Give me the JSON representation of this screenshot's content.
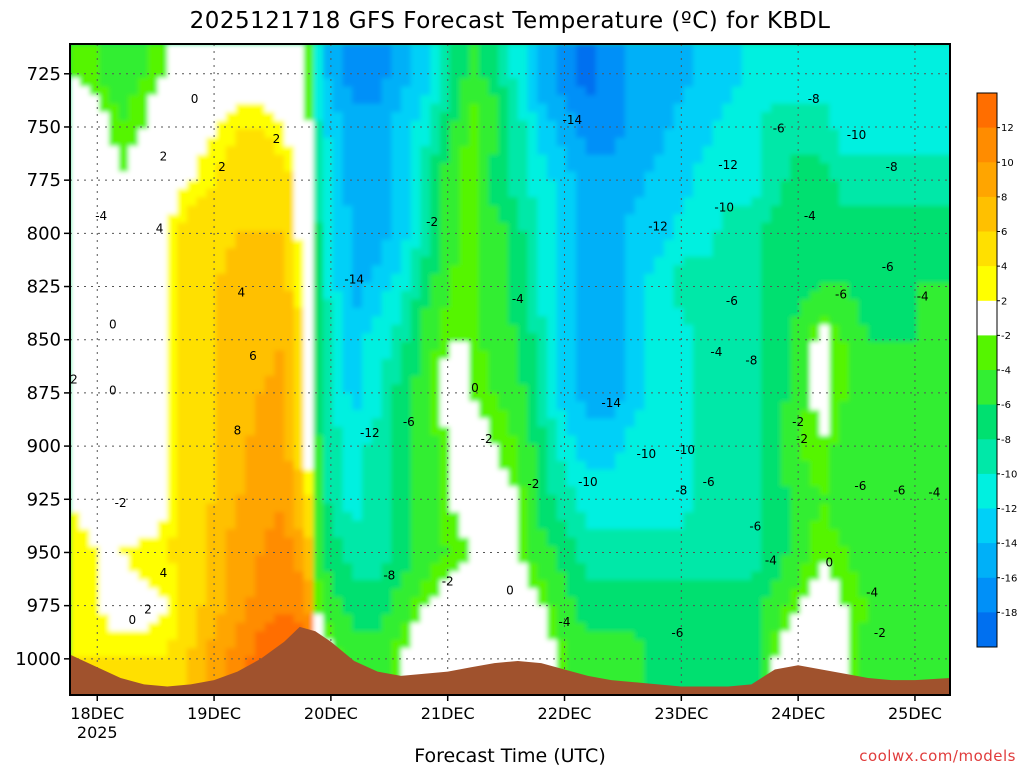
{
  "chart_data": {
    "type": "heatmap",
    "title": "2025121718 GFS Forecast Temperature (ºC) for KBDL",
    "xlabel": "Forecast Time (UTC)",
    "ylabel": "",
    "credit": "coolwx.com/models",
    "y_axis": {
      "ticks": [
        725,
        750,
        775,
        800,
        825,
        850,
        875,
        900,
        925,
        950,
        975,
        1000
      ],
      "range": [
        711,
        1017
      ],
      "inverted": true
    },
    "x_axis": {
      "ticks": [
        {
          "label": "18DEC",
          "sublabel": "2025",
          "hour": 6
        },
        {
          "label": "19DEC",
          "hour": 36
        },
        {
          "label": "20DEC",
          "hour": 66
        },
        {
          "label": "21DEC",
          "hour": 96
        },
        {
          "label": "22DEC",
          "hour": 126
        },
        {
          "label": "23DEC",
          "hour": 156
        },
        {
          "label": "24DEC",
          "hour": 186
        },
        {
          "label": "25DEC",
          "hour": 216
        }
      ],
      "range_hours": [
        -1,
        225
      ]
    },
    "colorbar": {
      "labels": [
        "12",
        "10",
        "8",
        "6",
        "4",
        "2",
        "-2",
        "-4",
        "-6",
        "-8",
        "-10",
        "-12",
        "-14",
        "-16",
        "-18"
      ],
      "colors": [
        "#ff6e00",
        "#ff8c00",
        "#ffa500",
        "#ffc000",
        "#ffe000",
        "#ffff00",
        "#ffffff",
        "#55f500",
        "#33ee33",
        "#00e070",
        "#00e8a8",
        "#00f0e0",
        "#00d0f8",
        "#00b0f8",
        "#0090f8",
        "#0070f0"
      ]
    },
    "bands": [
      {
        "label": "-18",
        "color": "#0070f0"
      },
      {
        "label": "-16",
        "color": "#0090f8"
      },
      {
        "label": "-14",
        "color": "#00b0f8"
      },
      {
        "label": "-12",
        "color": "#00d0f8"
      },
      {
        "label": "-10",
        "color": "#00f0e0"
      },
      {
        "label": "-8",
        "color": "#00e8a8"
      },
      {
        "label": "-6",
        "color": "#00e070"
      },
      {
        "label": "-4",
        "color": "#33ee33"
      },
      {
        "label": "-2",
        "color": "#55f500"
      },
      {
        "label": "0",
        "color": "#ffffff"
      },
      {
        "label": "2",
        "color": "#ffff00"
      },
      {
        "label": "4",
        "color": "#ffe000"
      },
      {
        "label": "6",
        "color": "#ffc000"
      },
      {
        "label": "8",
        "color": "#ffa500"
      },
      {
        "label": "10",
        "color": "#ff8c00"
      },
      {
        "label": "12",
        "color": "#ff6e00"
      }
    ],
    "terrain_color": "#a0522d",
    "temperature_grid": {
      "levels_hpa": [
        1015,
        1000,
        975,
        950,
        925,
        900,
        875,
        850,
        825,
        800,
        775,
        750,
        725,
        711
      ],
      "hours": [
        -1,
        6,
        12,
        18,
        24,
        30,
        36,
        42,
        48,
        54,
        60,
        62,
        64,
        66,
        72,
        78,
        84,
        90,
        96,
        102,
        108,
        114,
        120,
        126,
        132,
        138,
        144,
        150,
        156,
        162,
        168,
        174,
        180,
        186,
        192,
        198,
        204,
        210,
        216,
        225
      ],
      "values": [
        [
          3,
          3,
          3,
          3,
          3,
          5,
          8,
          10,
          12,
          12,
          12,
          2,
          0,
          -2,
          -4,
          -4,
          -2,
          0,
          0,
          0,
          0,
          2,
          0,
          -3,
          -4,
          -4,
          -4,
          -6,
          -6,
          -6,
          -6,
          -6,
          -2,
          0,
          0,
          -2,
          -4,
          -4,
          -4,
          -4
        ],
        [
          3,
          3,
          3,
          3,
          3,
          5,
          8,
          10,
          12,
          12,
          12,
          2,
          0,
          -2,
          -4,
          -4,
          -2,
          0,
          0,
          0,
          0,
          2,
          0,
          -3,
          -4,
          -4,
          -4,
          -6,
          -6,
          -6,
          -6,
          -6,
          -2,
          0,
          0,
          -2,
          -4,
          -4,
          -4,
          -4
        ],
        [
          2,
          2,
          1,
          1,
          2,
          4,
          6,
          8,
          10,
          11,
          10,
          -2,
          -3,
          -4,
          -6,
          -6,
          -4,
          -2,
          -1,
          0,
          0,
          0,
          -2,
          -4,
          -6,
          -6,
          -6,
          -6,
          -6,
          -6,
          -6,
          -6,
          -4,
          -2,
          -1,
          -2,
          -3,
          -4,
          -4,
          -4
        ],
        [
          3,
          2,
          2,
          3,
          3,
          4,
          6,
          8,
          9,
          10,
          7,
          -3,
          -5,
          -6,
          -8,
          -8,
          -6,
          -4,
          -3,
          -2,
          -1,
          -2,
          -4,
          -6,
          -8,
          -8,
          -8,
          -8,
          -8,
          -8,
          -8,
          -8,
          -6,
          -4,
          -2,
          -3,
          -4,
          -4,
          -4,
          -4
        ],
        [
          2,
          1,
          -1,
          -1,
          2,
          4,
          5,
          7,
          8,
          9,
          4,
          -4,
          -6,
          -8,
          -10,
          -8,
          -6,
          -4,
          -2,
          -1,
          -1,
          -2,
          -6,
          -8,
          -10,
          -10,
          -10,
          -10,
          -10,
          -8,
          -8,
          -8,
          -6,
          -4,
          -3,
          -4,
          -4,
          -4,
          -4,
          -4
        ],
        [
          1,
          0,
          -1,
          0,
          2,
          4,
          5,
          6,
          8,
          8,
          2,
          -4,
          -6,
          -8,
          -10,
          -8,
          -6,
          -4,
          -2,
          -1,
          -2,
          -3,
          -6,
          -10,
          -12,
          -12,
          -10,
          -10,
          -10,
          -8,
          -8,
          -8,
          -6,
          -3,
          -2,
          -4,
          -5,
          -4,
          -4,
          -4
        ],
        [
          1,
          0,
          0,
          1,
          2,
          4,
          5,
          6,
          7,
          8,
          1,
          -5,
          -7,
          -9,
          -12,
          -10,
          -6,
          -4,
          -1,
          -2,
          -3,
          -4,
          -8,
          -12,
          -14,
          -14,
          -12,
          -10,
          -10,
          -8,
          -8,
          -8,
          -6,
          -4,
          -1,
          -3,
          -5,
          -5,
          -5,
          -5
        ],
        [
          1,
          0,
          0,
          1,
          2,
          4,
          5,
          6,
          6,
          7,
          1,
          -5,
          -7,
          -9,
          -12,
          -10,
          -8,
          -4,
          -2,
          -2,
          -4,
          -5,
          -8,
          -12,
          -14,
          -14,
          -12,
          -10,
          -10,
          -8,
          -8,
          -8,
          -6,
          -4,
          -1,
          -3,
          -5,
          -5,
          -5,
          -5
        ],
        [
          2,
          0,
          -1,
          1,
          2,
          4,
          5,
          6,
          6,
          6,
          1,
          -6,
          -8,
          -10,
          -14,
          -12,
          -10,
          -6,
          -3,
          -2,
          -4,
          -6,
          -10,
          -12,
          -14,
          -14,
          -12,
          -10,
          -8,
          -8,
          -8,
          -8,
          -6,
          -6,
          -5,
          -5,
          -6,
          -6,
          -5,
          -5
        ],
        [
          2,
          0,
          -1,
          1,
          2,
          4,
          4,
          5,
          5,
          5,
          0,
          -6,
          -8,
          -10,
          -14,
          -14,
          -12,
          -8,
          -4,
          -2,
          -4,
          -6,
          -10,
          -12,
          -14,
          -14,
          -12,
          -12,
          -10,
          -10,
          -8,
          -8,
          -6,
          -6,
          -6,
          -6,
          -6,
          -6,
          -6,
          -6
        ],
        [
          2,
          0,
          -2,
          0,
          1,
          2,
          3,
          4,
          4,
          4,
          0,
          -7,
          -9,
          -11,
          -14,
          -14,
          -12,
          -8,
          -4,
          -2,
          -6,
          -8,
          -10,
          -12,
          -14,
          -14,
          -14,
          -12,
          -12,
          -10,
          -10,
          -10,
          -8,
          -6,
          -6,
          -8,
          -8,
          -8,
          -8,
          -8
        ],
        [
          0,
          -1,
          -3,
          -2,
          0,
          1,
          2,
          3,
          3,
          2,
          -1,
          -8,
          -10,
          -12,
          -14,
          -14,
          -12,
          -10,
          -6,
          -2,
          -4,
          -8,
          -12,
          -14,
          -16,
          -16,
          -14,
          -14,
          -12,
          -12,
          -10,
          -10,
          -8,
          -8,
          -8,
          -10,
          -10,
          -10,
          -10,
          -10
        ],
        [
          -2,
          -3,
          -4,
          -3,
          -2,
          -1,
          0,
          1,
          1,
          0,
          -2,
          -10,
          -12,
          -14,
          -16,
          -16,
          -14,
          -12,
          -8,
          -4,
          -6,
          -10,
          -14,
          -16,
          -18,
          -16,
          -14,
          -14,
          -14,
          -12,
          -12,
          -10,
          -10,
          -10,
          -10,
          -10,
          -10,
          -10,
          -10,
          -10
        ],
        [
          -2,
          -3,
          -4,
          -3,
          -2,
          -1,
          0,
          1,
          1,
          0,
          -2,
          -10,
          -12,
          -14,
          -16,
          -16,
          -14,
          -12,
          -8,
          -4,
          -6,
          -10,
          -14,
          -16,
          -18,
          -16,
          -14,
          -14,
          -14,
          -12,
          -12,
          -10,
          -10,
          -10,
          -10,
          -10,
          -10,
          -10,
          -10,
          -10
        ]
      ]
    },
    "surface_pressure": {
      "hours": [
        -1,
        6,
        12,
        18,
        24,
        30,
        36,
        42,
        48,
        54,
        58,
        62,
        66,
        72,
        78,
        84,
        90,
        96,
        102,
        108,
        114,
        120,
        126,
        132,
        138,
        144,
        150,
        156,
        162,
        168,
        174,
        180,
        186,
        192,
        198,
        204,
        210,
        216,
        225
      ],
      "pressure_hpa": [
        998,
        1004,
        1009,
        1012,
        1013,
        1012,
        1010,
        1006,
        1000,
        992,
        985,
        987,
        992,
        1001,
        1006,
        1008,
        1007,
        1006,
        1004,
        1002,
        1001,
        1002,
        1005,
        1008,
        1010,
        1011,
        1012,
        1013,
        1013,
        1013,
        1012,
        1005,
        1003,
        1005,
        1007,
        1009,
        1010,
        1010,
        1009
      ]
    },
    "contour_labels": [
      {
        "text": "0",
        "hour": 31,
        "hpa": 737
      },
      {
        "text": "2",
        "hour": 52,
        "hpa": 756
      },
      {
        "text": "2",
        "hour": 23,
        "hpa": 764
      },
      {
        "text": "2",
        "hour": 38,
        "hpa": 769
      },
      {
        "text": "-4",
        "hour": 7,
        "hpa": 792
      },
      {
        "text": "4",
        "hour": 22,
        "hpa": 798
      },
      {
        "text": "4",
        "hour": 43,
        "hpa": 828
      },
      {
        "text": "0",
        "hour": 10,
        "hpa": 843
      },
      {
        "text": "6",
        "hour": 46,
        "hpa": 858
      },
      {
        "text": "2",
        "hour": 0,
        "hpa": 869
      },
      {
        "text": "0",
        "hour": 10,
        "hpa": 874
      },
      {
        "text": "8",
        "hour": 42,
        "hpa": 893
      },
      {
        "text": "-2",
        "hour": 12,
        "hpa": 927
      },
      {
        "text": "4",
        "hour": 23,
        "hpa": 960
      },
      {
        "text": "2",
        "hour": 19,
        "hpa": 977
      },
      {
        "text": "0",
        "hour": 15,
        "hpa": 982
      },
      {
        "text": "-14",
        "hour": 72,
        "hpa": 822
      },
      {
        "text": "-12",
        "hour": 76,
        "hpa": 894
      },
      {
        "text": "-6",
        "hour": 86,
        "hpa": 889
      },
      {
        "text": "-8",
        "hour": 81,
        "hpa": 961
      },
      {
        "text": "-2",
        "hour": 92,
        "hpa": 795
      },
      {
        "text": "0",
        "hour": 103,
        "hpa": 873
      },
      {
        "text": "-2",
        "hour": 106,
        "hpa": 897
      },
      {
        "text": "-2",
        "hour": 96,
        "hpa": 964
      },
      {
        "text": "0",
        "hour": 112,
        "hpa": 968
      },
      {
        "text": "-2",
        "hour": 118,
        "hpa": 918
      },
      {
        "text": "-4",
        "hour": 114,
        "hpa": 831
      },
      {
        "text": "-14",
        "hour": 128,
        "hpa": 747
      },
      {
        "text": "-14",
        "hour": 138,
        "hpa": 880
      },
      {
        "text": "-10",
        "hour": 147,
        "hpa": 904
      },
      {
        "text": "-10",
        "hour": 132,
        "hpa": 917
      },
      {
        "text": "-10",
        "hour": 157,
        "hpa": 902
      },
      {
        "text": "-12",
        "hour": 168,
        "hpa": 768
      },
      {
        "text": "-10",
        "hour": 167,
        "hpa": 788
      },
      {
        "text": "-12",
        "hour": 150,
        "hpa": 797
      },
      {
        "text": "-8",
        "hour": 156,
        "hpa": 921
      },
      {
        "text": "-6",
        "hour": 163,
        "hpa": 917
      },
      {
        "text": "-6",
        "hour": 169,
        "hpa": 832
      },
      {
        "text": "-4",
        "hour": 165,
        "hpa": 856
      },
      {
        "text": "-8",
        "hour": 174,
        "hpa": 860
      },
      {
        "text": "-6",
        "hour": 175,
        "hpa": 938
      },
      {
        "text": "-4",
        "hour": 179,
        "hpa": 954
      },
      {
        "text": "-6",
        "hour": 155,
        "hpa": 988
      },
      {
        "text": "-4",
        "hour": 126,
        "hpa": 983
      },
      {
        "text": "-8",
        "hour": 190,
        "hpa": 737
      },
      {
        "text": "-6",
        "hour": 181,
        "hpa": 751
      },
      {
        "text": "-10",
        "hour": 201,
        "hpa": 754
      },
      {
        "text": "-8",
        "hour": 210,
        "hpa": 769
      },
      {
        "text": "-4",
        "hour": 189,
        "hpa": 792
      },
      {
        "text": "-6",
        "hour": 209,
        "hpa": 816
      },
      {
        "text": "-6",
        "hour": 197,
        "hpa": 829
      },
      {
        "text": "-4",
        "hour": 218,
        "hpa": 830
      },
      {
        "text": "-2",
        "hour": 186,
        "hpa": 889
      },
      {
        "text": "-2",
        "hour": 187,
        "hpa": 897
      },
      {
        "text": "-6",
        "hour": 202,
        "hpa": 919
      },
      {
        "text": "-6",
        "hour": 212,
        "hpa": 921
      },
      {
        "text": "-4",
        "hour": 221,
        "hpa": 922
      },
      {
        "text": "0",
        "hour": 194,
        "hpa": 955
      },
      {
        "text": "-4",
        "hour": 205,
        "hpa": 969
      },
      {
        "text": "-2",
        "hour": 207,
        "hpa": 988
      }
    ]
  }
}
